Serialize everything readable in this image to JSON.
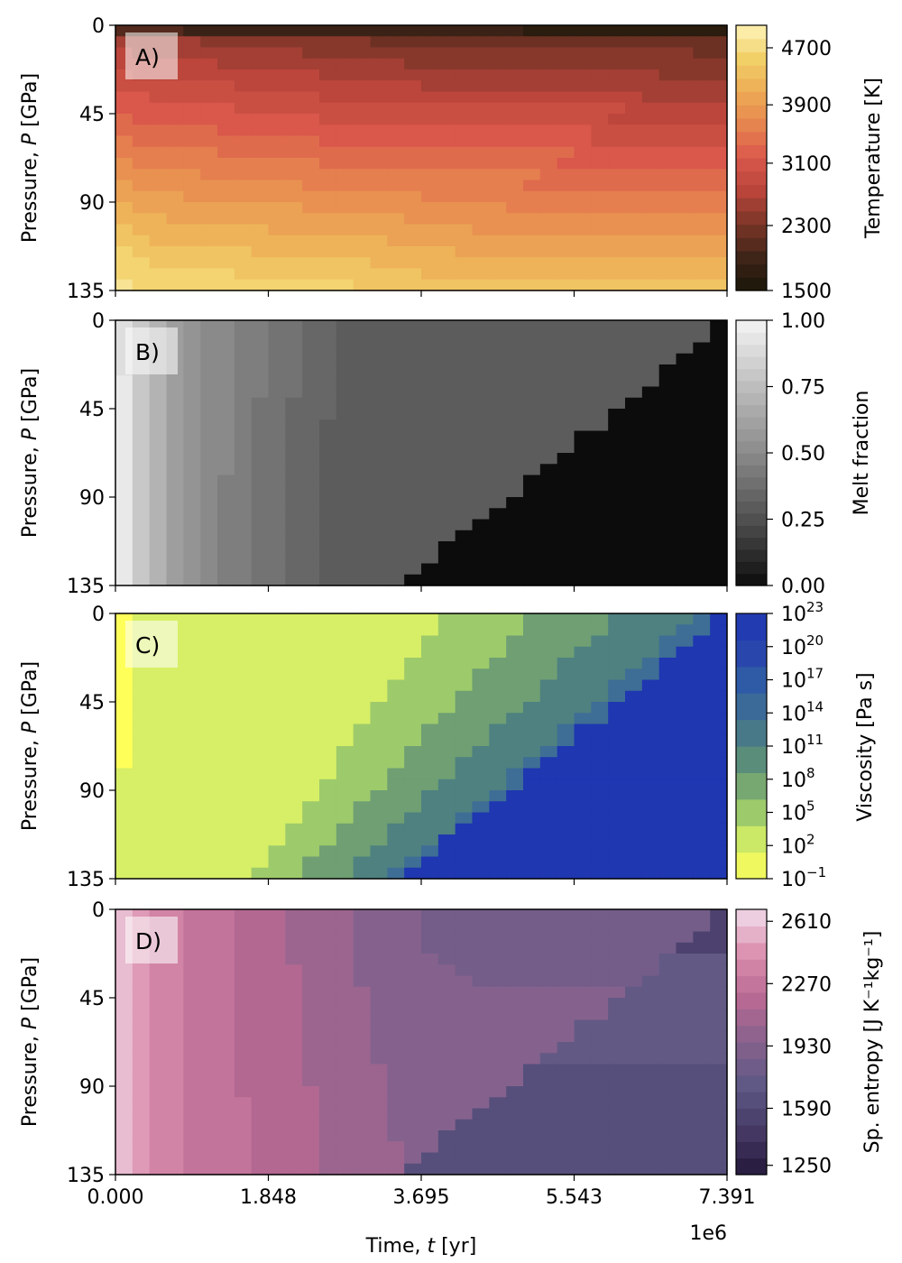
{
  "figure": {
    "shared_xlabel_prefix": "Time, ",
    "shared_xlabel_symbol": "t",
    "shared_xlabel_unit": " [yr]",
    "x_offset_label": "1e6",
    "x_ticks": [
      "0.000",
      "1.848",
      "3.695",
      "5.543",
      "7.391"
    ],
    "ylabel_prefix": "Pressure, ",
    "ylabel_symbol": "P",
    "ylabel_unit": " [GPa]",
    "y_ticks": [
      "0",
      "45",
      "90",
      "135"
    ]
  },
  "chart_data": [
    {
      "type": "heatmap",
      "panel_label": "A)",
      "xlabel": "Time, t [yr]",
      "ylabel": "Pressure, P [GPa]",
      "xlim": [
        0,
        7391000
      ],
      "ylim": [
        135,
        0
      ],
      "colorbar_label": "Temperature [K]",
      "colorbar_ticks": [
        "4700",
        "3900",
        "3100",
        "2300",
        "1500"
      ],
      "colorbar_range": [
        1500,
        4800
      ],
      "colormap": [
        "#1a1608",
        "#3f2418",
        "#7a3527",
        "#b8443a",
        "#d9574b",
        "#e6844f",
        "#edab55",
        "#f2d068",
        "#fdf3b8"
      ],
      "description_values": {
        "surface_temperature_K": [
          2000,
          1600
        ],
        "bottom_temperature_K": [
          4800,
          4050
        ],
        "solidification_front_end_time_yr": 3700000
      }
    },
    {
      "type": "heatmap",
      "panel_label": "B)",
      "xlabel": "Time, t [yr]",
      "ylabel": "Pressure, P [GPa]",
      "xlim": [
        0,
        7391000
      ],
      "ylim": [
        135,
        0
      ],
      "colorbar_label": "Melt fraction",
      "colorbar_ticks": [
        "1.00",
        "0.75",
        "0.50",
        "0.25",
        "0.00"
      ],
      "colorbar_range": [
        0,
        1
      ],
      "colormap": [
        "#0c0c0c",
        "#505050",
        "#8a8a8a",
        "#bdbdbd",
        "#f4f4f4"
      ]
    },
    {
      "type": "heatmap",
      "panel_label": "C)",
      "xlabel": "Time, t [yr]",
      "ylabel": "Pressure, P [GPa]",
      "xlim": [
        0,
        7391000
      ],
      "ylim": [
        135,
        0
      ],
      "colorbar_label": "Viscosity [Pa s]",
      "colorbar_ticks": [
        {
          "base": "10",
          "exp": "23"
        },
        {
          "base": "10",
          "exp": "20"
        },
        {
          "base": "10",
          "exp": "17"
        },
        {
          "base": "10",
          "exp": "14"
        },
        {
          "base": "10",
          "exp": "11"
        },
        {
          "base": "10",
          "exp": "8"
        },
        {
          "base": "10",
          "exp": "5"
        },
        {
          "base": "10",
          "exp": "2"
        },
        {
          "base": "10",
          "exp": "−1"
        }
      ],
      "colorbar_range": [
        -1,
        23
      ],
      "colorbar_scale": "log",
      "colormap": [
        "#ffff5a",
        "#d7ef66",
        "#9dca6b",
        "#6f9f73",
        "#4e8180",
        "#3e6e95",
        "#2f5aa5",
        "#2641ae",
        "#1f37b1"
      ]
    },
    {
      "type": "heatmap",
      "panel_label": "D)",
      "xlabel": "Time, t [yr]",
      "ylabel": "Pressure, P [GPa]",
      "xlim": [
        0,
        7391000
      ],
      "ylim": [
        135,
        0
      ],
      "colorbar_label": "Sp. entropy [J K⁻¹kg⁻¹]",
      "colorbar_ticks": [
        "2610",
        "2270",
        "1930",
        "1590",
        "1250"
      ],
      "colorbar_range": [
        1200,
        2650
      ],
      "colormap": [
        "#23183a",
        "#463a66",
        "#5d5784",
        "#85628d",
        "#b96992",
        "#db8fae",
        "#f1ddec"
      ]
    }
  ]
}
